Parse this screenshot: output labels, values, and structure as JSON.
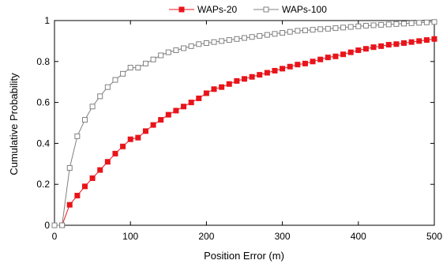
{
  "chart_data": {
    "type": "line",
    "xlabel": "Position Error (m)",
    "ylabel": "Cumulative Probability",
    "xlim": [
      0,
      500
    ],
    "ylim": [
      0,
      1
    ],
    "x_ticks": [
      "0",
      "100",
      "200",
      "300",
      "400",
      "500"
    ],
    "y_ticks": [
      "0",
      "0.2",
      "0.4",
      "0.6",
      "0.8",
      "1"
    ],
    "grid": false,
    "legend": "top-center",
    "series": [
      {
        "name": "WAPs-20",
        "color": "#e8141b",
        "marker": "filled-square",
        "x": [
          0,
          10,
          20,
          30,
          40,
          50,
          60,
          70,
          80,
          90,
          100,
          110,
          120,
          130,
          140,
          150,
          160,
          170,
          180,
          190,
          200,
          210,
          220,
          230,
          240,
          250,
          260,
          270,
          280,
          290,
          300,
          310,
          320,
          330,
          340,
          350,
          360,
          370,
          380,
          390,
          400,
          410,
          420,
          430,
          440,
          450,
          460,
          470,
          480,
          490,
          500
        ],
        "y": [
          0,
          0,
          0.1,
          0.145,
          0.19,
          0.23,
          0.27,
          0.31,
          0.35,
          0.385,
          0.42,
          0.428,
          0.46,
          0.49,
          0.515,
          0.54,
          0.56,
          0.58,
          0.6,
          0.62,
          0.645,
          0.665,
          0.675,
          0.69,
          0.705,
          0.715,
          0.725,
          0.735,
          0.745,
          0.755,
          0.765,
          0.775,
          0.785,
          0.79,
          0.8,
          0.81,
          0.82,
          0.825,
          0.835,
          0.845,
          0.855,
          0.862,
          0.87,
          0.875,
          0.882,
          0.885,
          0.89,
          0.895,
          0.9,
          0.905,
          0.91
        ]
      },
      {
        "name": "WAPs-100",
        "color": "#808080",
        "marker": "open-square",
        "x": [
          0,
          10,
          20,
          30,
          40,
          50,
          60,
          70,
          80,
          90,
          100,
          110,
          120,
          130,
          140,
          150,
          160,
          170,
          180,
          190,
          200,
          210,
          220,
          230,
          240,
          250,
          260,
          270,
          280,
          290,
          300,
          310,
          320,
          330,
          340,
          350,
          360,
          370,
          380,
          390,
          400,
          410,
          420,
          430,
          440,
          450,
          460,
          470,
          480,
          490,
          500
        ],
        "y": [
          0,
          0,
          0.28,
          0.435,
          0.515,
          0.58,
          0.63,
          0.675,
          0.71,
          0.74,
          0.77,
          0.77,
          0.79,
          0.81,
          0.83,
          0.845,
          0.855,
          0.865,
          0.875,
          0.885,
          0.89,
          0.895,
          0.9,
          0.905,
          0.91,
          0.915,
          0.92,
          0.925,
          0.93,
          0.935,
          0.94,
          0.945,
          0.95,
          0.952,
          0.955,
          0.958,
          0.96,
          0.963,
          0.966,
          0.969,
          0.972,
          0.975,
          0.977,
          0.979,
          0.981,
          0.983,
          0.985,
          0.987,
          0.989,
          0.991,
          0.993
        ]
      }
    ]
  }
}
